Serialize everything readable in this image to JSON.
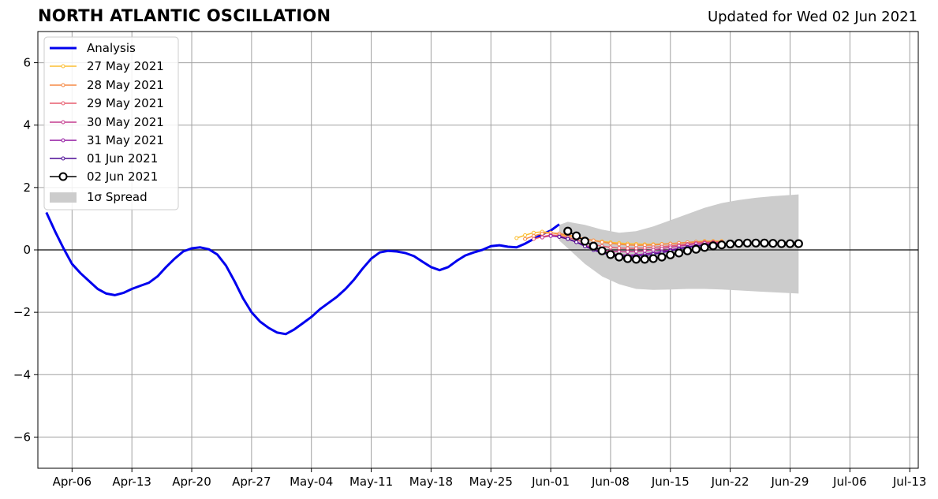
{
  "header": {
    "title": "NORTH ATLANTIC OSCILLATION",
    "updated": "Updated for Wed 02 Jun 2021"
  },
  "chart_data": {
    "type": "line",
    "title": "NORTH ATLANTIC OSCILLATION",
    "xlabel": "",
    "ylabel": "",
    "xlim": [
      "2021-04-02",
      "2021-07-14"
    ],
    "ylim": [
      -7,
      7
    ],
    "grid": true,
    "legend_position": "top-left",
    "x_ticks": [
      "2021-04-06",
      "2021-04-13",
      "2021-04-20",
      "2021-04-27",
      "2021-05-04",
      "2021-05-11",
      "2021-05-18",
      "2021-05-25",
      "2021-06-01",
      "2021-06-08",
      "2021-06-15",
      "2021-06-22",
      "2021-06-29",
      "2021-07-06",
      "2021-07-13"
    ],
    "x_tick_labels": [
      "Apr-06",
      "Apr-13",
      "Apr-20",
      "Apr-27",
      "May-04",
      "May-11",
      "May-18",
      "May-25",
      "Jun-01",
      "Jun-08",
      "Jun-15",
      "Jun-22",
      "Jun-29",
      "Jul-06",
      "Jul-13"
    ],
    "y_ticks": [
      -6,
      -4,
      -2,
      0,
      2,
      4,
      6
    ],
    "y_tick_labels": [
      "−6",
      "−4",
      "−2",
      "0",
      "2",
      "4",
      "6"
    ],
    "analysis": {
      "name": "Analysis",
      "color": "#0000ee",
      "x": [
        "2021-04-03",
        "2021-04-04",
        "2021-04-05",
        "2021-04-06",
        "2021-04-07",
        "2021-04-08",
        "2021-04-09",
        "2021-04-10",
        "2021-04-11",
        "2021-04-12",
        "2021-04-13",
        "2021-04-14",
        "2021-04-15",
        "2021-04-16",
        "2021-04-17",
        "2021-04-18",
        "2021-04-19",
        "2021-04-20",
        "2021-04-21",
        "2021-04-22",
        "2021-04-23",
        "2021-04-24",
        "2021-04-25",
        "2021-04-26",
        "2021-04-27",
        "2021-04-28",
        "2021-04-29",
        "2021-04-30",
        "2021-05-01",
        "2021-05-02",
        "2021-05-03",
        "2021-05-04",
        "2021-05-05",
        "2021-05-06",
        "2021-05-07",
        "2021-05-08",
        "2021-05-09",
        "2021-05-10",
        "2021-05-11",
        "2021-05-12",
        "2021-05-13",
        "2021-05-14",
        "2021-05-15",
        "2021-05-16",
        "2021-05-17",
        "2021-05-18",
        "2021-05-19",
        "2021-05-20",
        "2021-05-21",
        "2021-05-22",
        "2021-05-23",
        "2021-05-24",
        "2021-05-25",
        "2021-05-26",
        "2021-05-27",
        "2021-05-28",
        "2021-05-29",
        "2021-05-30",
        "2021-05-31",
        "2021-06-01",
        "2021-06-02"
      ],
      "y": [
        1.2,
        0.6,
        0.05,
        -0.45,
        -0.75,
        -1.0,
        -1.25,
        -1.4,
        -1.45,
        -1.38,
        -1.25,
        -1.15,
        -1.05,
        -0.85,
        -0.55,
        -0.28,
        -0.05,
        0.05,
        0.08,
        0.02,
        -0.15,
        -0.5,
        -1.0,
        -1.55,
        -2.0,
        -2.3,
        -2.5,
        -2.65,
        -2.7,
        -2.55,
        -2.35,
        -2.15,
        -1.9,
        -1.7,
        -1.5,
        -1.25,
        -0.95,
        -0.6,
        -0.28,
        -0.08,
        -0.03,
        -0.05,
        -0.1,
        -0.2,
        -0.38,
        -0.55,
        -0.65,
        -0.55,
        -0.35,
        -0.18,
        -0.08,
        0.0,
        0.12,
        0.15,
        0.1,
        0.08,
        0.2,
        0.35,
        0.5,
        0.62,
        0.82
      ]
    },
    "forecasts": [
      {
        "name": "27 May 2021",
        "color": "#fbbe30",
        "start": "2021-05-28",
        "y": [
          0.38,
          0.47,
          0.55,
          0.58,
          0.55,
          0.5,
          0.45,
          0.4,
          0.35,
          0.3,
          0.27,
          0.24,
          0.22,
          0.2,
          0.19,
          0.18,
          0.18,
          0.19,
          0.2,
          0.22,
          0.24,
          0.26,
          0.28,
          0.28,
          0.28
        ]
      },
      {
        "name": "28 May 2021",
        "color": "#f58a46",
        "start": "2021-05-29",
        "y": [
          0.35,
          0.45,
          0.52,
          0.55,
          0.52,
          0.48,
          0.42,
          0.36,
          0.3,
          0.25,
          0.21,
          0.18,
          0.16,
          0.15,
          0.15,
          0.16,
          0.18,
          0.2,
          0.22,
          0.24,
          0.26,
          0.27,
          0.27,
          0.27
        ]
      },
      {
        "name": "29 May 2021",
        "color": "#e75d6f",
        "start": "2021-05-30",
        "y": [
          0.35,
          0.42,
          0.48,
          0.46,
          0.4,
          0.32,
          0.24,
          0.17,
          0.12,
          0.08,
          0.06,
          0.05,
          0.05,
          0.06,
          0.08,
          0.1,
          0.13,
          0.16,
          0.19,
          0.22,
          0.24,
          0.25,
          0.25
        ]
      },
      {
        "name": "30 May 2021",
        "color": "#c43c8e",
        "start": "2021-05-31",
        "y": [
          0.4,
          0.45,
          0.42,
          0.35,
          0.25,
          0.15,
          0.06,
          0.0,
          -0.04,
          -0.06,
          -0.06,
          -0.05,
          -0.03,
          0.0,
          0.04,
          0.08,
          0.12,
          0.16,
          0.2,
          0.22,
          0.23,
          0.23
        ]
      },
      {
        "name": "31 May 2021",
        "color": "#9217a0",
        "start": "2021-06-01",
        "y": [
          0.45,
          0.42,
          0.35,
          0.25,
          0.12,
          0.0,
          -0.08,
          -0.13,
          -0.16,
          -0.17,
          -0.16,
          -0.13,
          -0.09,
          -0.05,
          0.0,
          0.05,
          0.1,
          0.14,
          0.17,
          0.2,
          0.2
        ]
      },
      {
        "name": "01 Jun 2021",
        "color": "#4c0a95",
        "start": "2021-06-02",
        "y": [
          0.42,
          0.35,
          0.25,
          0.12,
          0.0,
          -0.1,
          -0.16,
          -0.2,
          -0.21,
          -0.2,
          -0.18,
          -0.14,
          -0.09,
          -0.03,
          0.03,
          0.08,
          0.12,
          0.15,
          0.17,
          0.18
        ]
      }
    ],
    "latest": {
      "name": "02 Jun 2021",
      "color": "#000000",
      "start": "2021-06-03",
      "y": [
        0.6,
        0.45,
        0.28,
        0.12,
        -0.03,
        -0.15,
        -0.23,
        -0.28,
        -0.3,
        -0.3,
        -0.28,
        -0.23,
        -0.16,
        -0.1,
        -0.03,
        0.02,
        0.08,
        0.13,
        0.16,
        0.19,
        0.21,
        0.22,
        0.22,
        0.22,
        0.21,
        0.2,
        0.2,
        0.2
      ]
    },
    "spread": {
      "name": "1σ Spread",
      "color": "#cccccc",
      "x": [
        "2021-06-02",
        "2021-06-03",
        "2021-06-05",
        "2021-06-07",
        "2021-06-09",
        "2021-06-11",
        "2021-06-13",
        "2021-06-15",
        "2021-06-17",
        "2021-06-19",
        "2021-06-21",
        "2021-06-23",
        "2021-06-25",
        "2021-06-27",
        "2021-06-30"
      ],
      "upper": [
        0.8,
        0.9,
        0.8,
        0.65,
        0.55,
        0.6,
        0.75,
        0.95,
        1.15,
        1.35,
        1.5,
        1.6,
        1.67,
        1.72,
        1.78
      ],
      "lower": [
        0.3,
        0.05,
        -0.45,
        -0.85,
        -1.1,
        -1.25,
        -1.28,
        -1.27,
        -1.25,
        -1.25,
        -1.27,
        -1.3,
        -1.33,
        -1.36,
        -1.4
      ]
    },
    "legend": [
      {
        "label": "Analysis",
        "kind": "thick-line",
        "color": "#0000ee"
      },
      {
        "label": "27 May 2021",
        "kind": "marker-line",
        "color": "#fbbe30"
      },
      {
        "label": "28 May 2021",
        "kind": "marker-line",
        "color": "#f58a46"
      },
      {
        "label": "29 May 2021",
        "kind": "marker-line",
        "color": "#e75d6f"
      },
      {
        "label": "30 May 2021",
        "kind": "marker-line",
        "color": "#c43c8e"
      },
      {
        "label": "31 May 2021",
        "kind": "marker-line",
        "color": "#9217a0"
      },
      {
        "label": "01 Jun 2021",
        "kind": "marker-line",
        "color": "#4c0a95"
      },
      {
        "label": "02 Jun 2021",
        "kind": "open-circle-line",
        "color": "#000000"
      },
      {
        "label": "1σ Spread",
        "kind": "patch",
        "color": "#cccccc"
      }
    ]
  }
}
